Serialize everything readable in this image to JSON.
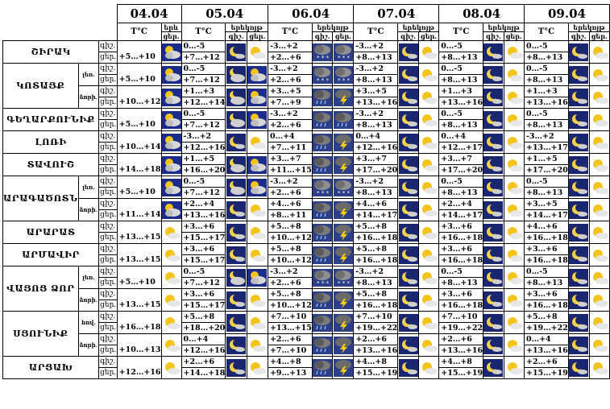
{
  "header": {
    "dates": [
      "04.04",
      "05.04",
      "06.04",
      "07.04",
      "08.04",
      "09.04"
    ],
    "temp_label": "T°C",
    "wx_label": "երեկոյթ",
    "wx_label_short": "երև",
    "night_label": "գիշ.",
    "day_label": "ցեր."
  },
  "regions": [
    {
      "name": "ՇԻՐԱԿ",
      "subs": [
        {
          "label": "",
          "night": "+5…+10",
          "day": "",
          "cells": [
            {
              "n": "0…-5",
              "d": "+7…+12",
              "ni": "moon",
              "di": "sun"
            },
            {
              "n": "-3…+2",
              "d": "+2…+6",
              "ni": "snow",
              "di": "snow"
            },
            {
              "n": "-3…+2",
              "d": "+8…+13",
              "ni": "moon",
              "di": "sun"
            },
            {
              "n": "0…-5",
              "d": "+8…+13",
              "ni": "moon",
              "di": "sun"
            },
            {
              "n": "0…-5",
              "d": "+8…+13",
              "ni": "moon",
              "di": "sun"
            }
          ],
          "i0": "cloudsun"
        }
      ]
    },
    {
      "name": "ԿՈՏԱՅՔ",
      "subs": [
        {
          "label": "լեռ.",
          "night": "+5…+10",
          "cells": [
            {
              "n": "0…-5",
              "d": "+7…+12",
              "ni": "cloudmoon",
              "di": "cloudsun"
            },
            {
              "n": "-3…+2",
              "d": "+2…+6",
              "ni": "snow",
              "di": "snow"
            },
            {
              "n": "-3…+2",
              "d": "+8…+13",
              "ni": "moon",
              "di": "sun"
            },
            {
              "n": "0…-5",
              "d": "+8…+13",
              "ni": "moon",
              "di": "sun"
            },
            {
              "n": "0…-5",
              "d": "+8…+13",
              "ni": "moon",
              "di": "sun"
            }
          ],
          "i0": "cloudsun"
        },
        {
          "label": "ձորի.",
          "night": "+10…+12",
          "cells": [
            {
              "n": "+1…+3",
              "d": "+12…+14",
              "ni": "cloudmoon",
              "di": "cloudsun"
            },
            {
              "n": "+3…+5",
              "d": "+7…+9",
              "ni": "rain",
              "di": "storm"
            },
            {
              "n": "+3…+5",
              "d": "+13…+16",
              "ni": "moon",
              "di": "sun"
            },
            {
              "n": "+1…+3",
              "d": "+13…+16",
              "ni": "moon",
              "di": "sun"
            },
            {
              "n": "+1…+3",
              "d": "+13…+16",
              "ni": "moon",
              "di": "sun"
            }
          ],
          "i0": "cloudsun"
        }
      ]
    },
    {
      "name": "ԳԵՂԱՐՔՈՒՆԻՔ",
      "subs": [
        {
          "label": "",
          "night": "+5…+10",
          "cells": [
            {
              "n": "0…-5",
              "d": "+7…+12",
              "ni": "cloudmoon",
              "di": "cloudsun"
            },
            {
              "n": "-3…+2",
              "d": "+2…+6",
              "ni": "rain",
              "di": "rain"
            },
            {
              "n": "-3…+2",
              "d": "+8…+13",
              "ni": "moon",
              "di": "sun"
            },
            {
              "n": "0…-5",
              "d": "+8…+13",
              "ni": "moon",
              "di": "sun"
            },
            {
              "n": "0…-5",
              "d": "+8…+13",
              "ni": "moon",
              "di": "sun"
            }
          ],
          "i0": "cloudsun"
        }
      ]
    },
    {
      "name": "ԼՈՌԻ",
      "subs": [
        {
          "label": "",
          "night": "+10…+14",
          "cells": [
            {
              "n": "-3…+2",
              "d": "+12…+16",
              "ni": "moon",
              "di": "sun"
            },
            {
              "n": "0…+4",
              "d": "+7…+11",
              "ni": "rain",
              "di": "storm"
            },
            {
              "n": "0…+4",
              "d": "+12…+16",
              "ni": "moon",
              "di": "sun"
            },
            {
              "n": "0…+4",
              "d": "+12…+17",
              "ni": "moon",
              "di": "sun"
            },
            {
              "n": "-3…+2",
              "d": "+13…+17",
              "ni": "moon",
              "di": "sun"
            }
          ],
          "i0": "cloudsun"
        }
      ]
    },
    {
      "name": "ՏԱՎՈՒՇ",
      "subs": [
        {
          "label": "",
          "night": "+14…+18",
          "cells": [
            {
              "n": "+1…+5",
              "d": "+16…+20",
              "ni": "cloudmoon",
              "di": "cloudsun"
            },
            {
              "n": "+3…+7",
              "d": "+11…+15",
              "ni": "rain",
              "di": "storm"
            },
            {
              "n": "+3…+7",
              "d": "+17…+20",
              "ni": "moon",
              "di": "sun"
            },
            {
              "n": "+3…+7",
              "d": "+17…+20",
              "ni": "moon",
              "di": "sun"
            },
            {
              "n": "+1…+5",
              "d": "+17…+20",
              "ni": "moon",
              "di": "sun"
            }
          ],
          "i0": "cloudsun"
        }
      ]
    },
    {
      "name": "ԱՐԱԳԱԾՈՏՆ",
      "subs": [
        {
          "label": "լեռ.",
          "night": "+5…+10",
          "cells": [
            {
              "n": "0…-5",
              "d": "+7…+12",
              "ni": "cloudmoon",
              "di": "cloudsun"
            },
            {
              "n": "-3…+2",
              "d": "+2…+6",
              "ni": "snow",
              "di": "snow"
            },
            {
              "n": "-3…+2",
              "d": "+8…+13",
              "ni": "moon",
              "di": "sun"
            },
            {
              "n": "0…-5",
              "d": "+8…+13",
              "ni": "moon",
              "di": "sun"
            },
            {
              "n": "0…-5",
              "d": "+8…+13",
              "ni": "moon",
              "di": "sun"
            }
          ],
          "i0": "cloudsun"
        },
        {
          "label": "ձորի.",
          "night": "+11…+14",
          "cells": [
            {
              "n": "+2…+4",
              "d": "+13…+16",
              "ni": "moon",
              "di": "sun"
            },
            {
              "n": "+4…+6",
              "d": "+8…+11",
              "ni": "rain",
              "di": "storm"
            },
            {
              "n": "+4…+6",
              "d": "+14…+17",
              "ni": "moon",
              "di": "sun"
            },
            {
              "n": "+2…+4",
              "d": "+14…+17",
              "ni": "moon",
              "di": "sun"
            },
            {
              "n": "+3…+5",
              "d": "+14…+17",
              "ni": "moon",
              "di": "sun"
            }
          ],
          "i0": "cloudsun"
        }
      ]
    },
    {
      "name": "ԱՐԱՐԱՏ",
      "subs": [
        {
          "label": "",
          "night": "+13…+15",
          "cells": [
            {
              "n": "+3…+6",
              "d": "+15…+17",
              "ni": "moon",
              "di": "sun"
            },
            {
              "n": "+5…+8",
              "d": "+10…+12",
              "ni": "rain",
              "di": "storm"
            },
            {
              "n": "+5…+8",
              "d": "+16…+18",
              "ni": "moon",
              "di": "sun"
            },
            {
              "n": "+3…+6",
              "d": "+16…+18",
              "ni": "moon",
              "di": "sun"
            },
            {
              "n": "+4…+6",
              "d": "+16…+18",
              "ni": "moon",
              "di": "sun"
            }
          ],
          "i0": "sun"
        }
      ]
    },
    {
      "name": "ԱՐՄԱՎԻՐ",
      "subs": [
        {
          "label": "",
          "night": "+13…+15",
          "cells": [
            {
              "n": "+3…+6",
              "d": "+15…+17",
              "ni": "moon",
              "di": "sun"
            },
            {
              "n": "+5…+8",
              "d": "+10…+12",
              "ni": "rain",
              "di": "storm"
            },
            {
              "n": "+5…+8",
              "d": "+16…+18",
              "ni": "moon",
              "di": "sun"
            },
            {
              "n": "+3…+6",
              "d": "+16…+18",
              "ni": "moon",
              "di": "sun"
            },
            {
              "n": "+3…+6",
              "d": "+16…+18",
              "ni": "moon",
              "di": "sun"
            }
          ],
          "i0": "sun"
        }
      ]
    },
    {
      "name": "ՎԱՅՈՑ ՁՈՐ",
      "subs": [
        {
          "label": "լեռ.",
          "night": "+5…+10",
          "cells": [
            {
              "n": "0…-5",
              "d": "+7…+12",
              "ni": "cloudmoon",
              "di": "cloudsun"
            },
            {
              "n": "-3…+2",
              "d": "+2…+6",
              "ni": "snow",
              "di": "snow"
            },
            {
              "n": "-3…+2",
              "d": "+8…+13",
              "ni": "moon",
              "di": "sun"
            },
            {
              "n": "0…-5",
              "d": "+8…+13",
              "ni": "moon",
              "di": "sun"
            },
            {
              "n": "0…-5",
              "d": "+8…+13",
              "ni": "moon",
              "di": "sun"
            }
          ],
          "i0": "sun"
        },
        {
          "label": "ձորի.",
          "night": "+13…+15",
          "cells": [
            {
              "n": "+3…+6",
              "d": "+15…+17",
              "ni": "moon",
              "di": "sun"
            },
            {
              "n": "+5…+8",
              "d": "+10…+12",
              "ni": "rain",
              "di": "storm"
            },
            {
              "n": "+5…+8",
              "d": "+16…+18",
              "ni": "moon",
              "di": "sun"
            },
            {
              "n": "+3…+6",
              "d": "+16…+18",
              "ni": "moon",
              "di": "sun"
            },
            {
              "n": "+3…+6",
              "d": "+16…+18",
              "ni": "moon",
              "di": "sun"
            }
          ],
          "i0": "sun"
        }
      ]
    },
    {
      "name": "ՍՅՈՒՆԻՔ",
      "subs": [
        {
          "label": "հով.",
          "night": "+16…+18",
          "cells": [
            {
              "n": "+5…+8",
              "d": "+18…+20",
              "ni": "moon",
              "di": "sun"
            },
            {
              "n": "+7…+10",
              "d": "+13…+15",
              "ni": "rain",
              "di": "storm"
            },
            {
              "n": "+7…+10",
              "d": "+19…+22",
              "ni": "moon",
              "di": "sun"
            },
            {
              "n": "+7…+10",
              "d": "+19…+22",
              "ni": "moon",
              "di": "sun"
            },
            {
              "n": "+5…+8",
              "d": "+19…+22",
              "ni": "moon",
              "di": "sun"
            }
          ],
          "i0": "sun"
        },
        {
          "label": "ձորի.",
          "night": "+10…+13",
          "cells": [
            {
              "n": "0…+4",
              "d": "+12…+16",
              "ni": "moon",
              "di": "sun"
            },
            {
              "n": "+2…+6",
              "d": "+7…+10",
              "ni": "rain",
              "di": "storm"
            },
            {
              "n": "+2…+6",
              "d": "+13…+16",
              "ni": "moon",
              "di": "sun"
            },
            {
              "n": "+2…+6",
              "d": "+13…+16",
              "ni": "moon",
              "di": "sun"
            },
            {
              "n": "0…+4",
              "d": "+13…+16",
              "ni": "moon",
              "di": "sun"
            }
          ],
          "i0": "sun"
        }
      ]
    },
    {
      "name": "ԱՐՑԱԽ",
      "subs": [
        {
          "label": "",
          "night": "+12…+16",
          "cells": [
            {
              "n": "+2…+6",
              "d": "+14…+18",
              "ni": "moon",
              "di": "sun"
            },
            {
              "n": "+4…+8",
              "d": "+9…+13",
              "ni": "rain",
              "di": "storm"
            },
            {
              "n": "+4…+8",
              "d": "+15…+19",
              "ni": "moon",
              "di": "sun"
            },
            {
              "n": "+4…+8",
              "d": "+15…+19",
              "ni": "moon",
              "di": "sun"
            },
            {
              "n": "+2…+6",
              "d": "+15…+19",
              "ni": "moon",
              "di": "sun"
            }
          ],
          "i0": "sun"
        }
      ]
    }
  ]
}
